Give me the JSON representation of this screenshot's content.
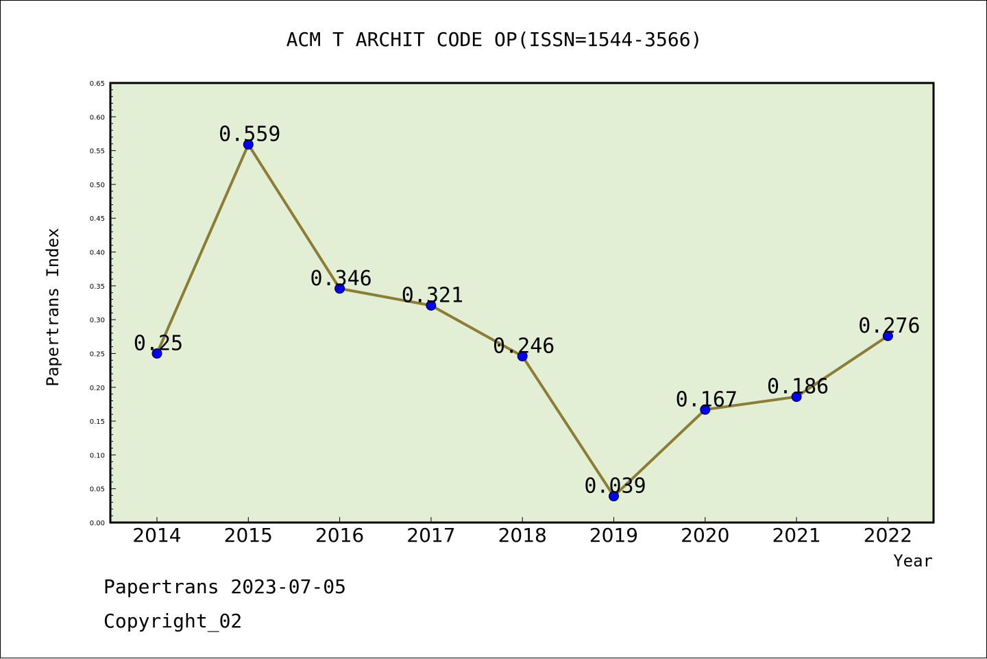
{
  "chart_data": {
    "type": "line",
    "title": "ACM T ARCHIT CODE OP(ISSN=1544-3566)",
    "xlabel": "Year",
    "ylabel": "Papertrans Index",
    "categories": [
      "2014",
      "2015",
      "2016",
      "2017",
      "2018",
      "2019",
      "2020",
      "2021",
      "2022"
    ],
    "series": [
      {
        "values": [
          0.25,
          0.559,
          0.346,
          0.321,
          0.246,
          0.039,
          0.167,
          0.186,
          0.276
        ],
        "labels": [
          "0.25",
          "0.559",
          "0.346",
          "0.321",
          "0.246",
          "0.039",
          "0.167",
          "0.186",
          "0.276"
        ]
      }
    ],
    "ylim": [
      0,
      0.65
    ],
    "yticks": [
      "0.00",
      "0.05",
      "0.10",
      "0.15",
      "0.20",
      "0.25",
      "0.30",
      "0.35",
      "0.40",
      "0.45",
      "0.50",
      "0.55",
      "0.60",
      "0.65"
    ],
    "grid": false,
    "colors": {
      "plot_bg": "#e2efd5",
      "line": "#8b7d35",
      "marker": "#0000ff"
    }
  },
  "footer": {
    "line1": "Papertrans 2023-07-05",
    "line2": "Copyright_02"
  }
}
